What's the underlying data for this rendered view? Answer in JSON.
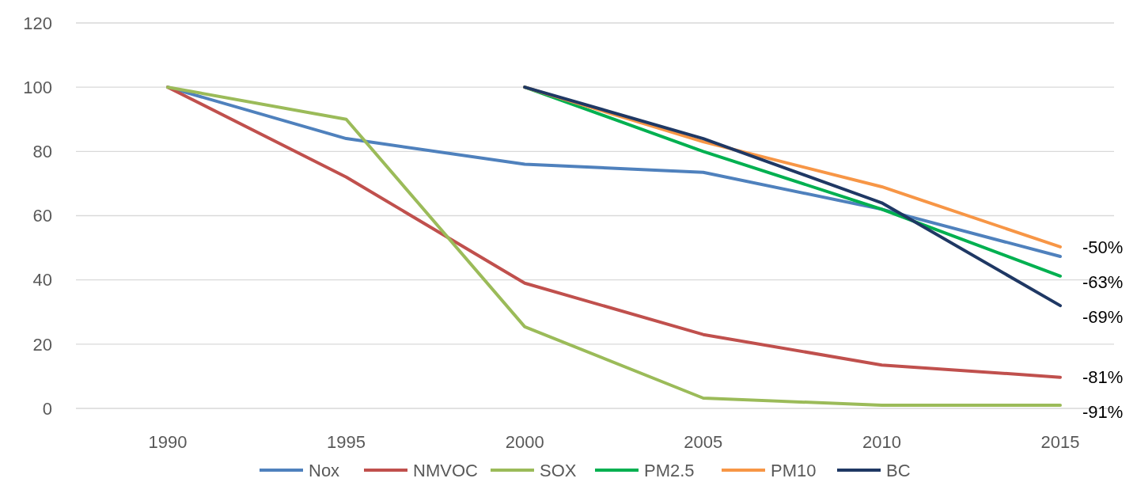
{
  "chart_data": {
    "type": "line",
    "categories": [
      "1990",
      "1995",
      "2000",
      "2005",
      "2010",
      "2015"
    ],
    "series": [
      {
        "name": "Nox",
        "color": "#4f81bd",
        "values": [
          100,
          84,
          76,
          73.5,
          62,
          47.3
        ]
      },
      {
        "name": "NMVOC",
        "color": "#c0504d",
        "values": [
          100,
          72,
          39,
          23,
          13.5,
          9.7
        ]
      },
      {
        "name": "SOX",
        "color": "#9bbb59",
        "values": [
          100,
          90,
          25.4,
          3.2,
          1,
          1
        ]
      },
      {
        "name": "PM2.5",
        "color": "#00b050",
        "values": [
          null,
          null,
          100,
          80,
          62,
          41.2
        ]
      },
      {
        "name": "PM10",
        "color": "#f79646",
        "values": [
          null,
          null,
          100,
          83,
          69,
          50.3
        ]
      },
      {
        "name": "BC",
        "color": "#1f3864",
        "values": [
          null,
          null,
          100,
          84,
          64,
          32
        ]
      }
    ],
    "ylim": [
      0,
      120
    ],
    "yticks": [
      0,
      20,
      40,
      60,
      80,
      100,
      120
    ],
    "grid": "y",
    "legend": "bottom",
    "marker": "none",
    "line_style": "solid",
    "annotations": [
      {
        "text": "-50%",
        "x": "2015",
        "y": 50.3
      },
      {
        "text": "-63%",
        "x": "2015",
        "y": 41.2
      },
      {
        "text": "-69%",
        "x": "2015",
        "y": 32
      },
      {
        "text": "-81%",
        "x": "2015",
        "y": 9.7
      },
      {
        "text": "-91%",
        "x": "2015",
        "y": 1
      }
    ]
  }
}
